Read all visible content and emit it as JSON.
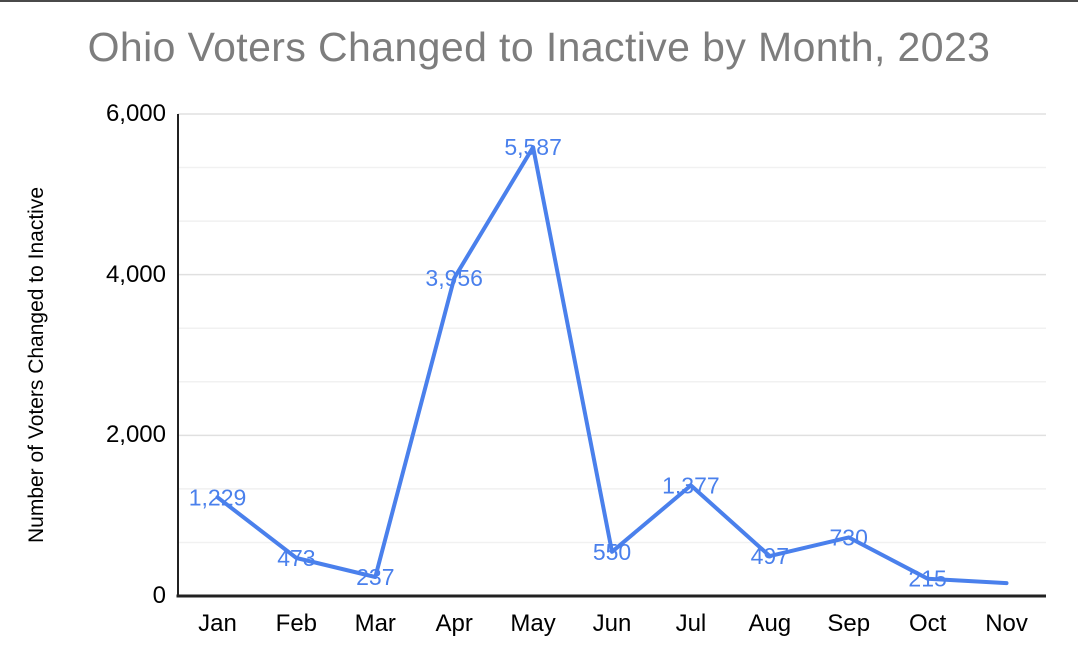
{
  "page": {
    "top_edge_color": "#4a4a4a",
    "background": "#ffffff"
  },
  "chart_data": {
    "type": "line",
    "title": "Ohio Voters Changed to Inactive by Month, 2023",
    "xlabel": "",
    "ylabel": "Number of Voters Changed to Inactive",
    "categories": [
      "Jan",
      "Feb",
      "Mar",
      "Apr",
      "May",
      "Jun",
      "Jul",
      "Aug",
      "Sep",
      "Oct",
      "Nov"
    ],
    "values": [
      1229,
      473,
      237,
      3956,
      5587,
      550,
      1377,
      497,
      730,
      215,
      160
    ],
    "value_labels": [
      "1,229",
      "473",
      "237",
      "3,956",
      "5,587",
      "550",
      "1,377",
      "497",
      "730",
      "215",
      ""
    ],
    "ylim": [
      0,
      6000
    ],
    "y_ticks": [
      {
        "value": 0,
        "label": "0"
      },
      {
        "value": 2000,
        "label": "2,000"
      },
      {
        "value": 4000,
        "label": "4,000"
      },
      {
        "value": 6000,
        "label": "6,000"
      }
    ],
    "y_minor_divisions_per_major": 3,
    "grid": true,
    "legend_position": "none",
    "colors": {
      "series_line": "#4a80ec",
      "data_label": "#4a80ec",
      "title_text": "#7d7d7d",
      "axis_line": "#212121",
      "major_gridline": "#e0e0e0",
      "minor_gridline": "#f1f1f1",
      "tick_label_text": "#000000"
    }
  }
}
